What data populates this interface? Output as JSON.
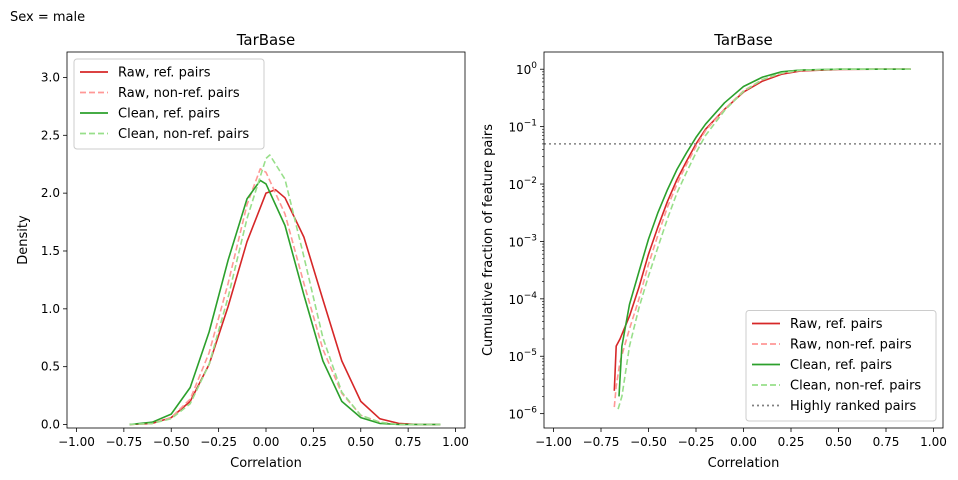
{
  "figure": {
    "suptitle": "Sex = male"
  },
  "chart_data": [
    {
      "type": "line",
      "title": "TarBase",
      "xlabel": "Correlation",
      "ylabel": "Density",
      "xlim": [
        -1.05,
        1.05
      ],
      "ylim": [
        -0.03,
        3.22
      ],
      "xticks": [
        -1.0,
        -0.75,
        -0.5,
        -0.25,
        0.0,
        0.25,
        0.5,
        0.75,
        1.0
      ],
      "xtick_labels": [
        "−1.00",
        "−0.75",
        "−0.50",
        "−0.25",
        "0.00",
        "0.25",
        "0.50",
        "0.75",
        "1.00"
      ],
      "yticks": [
        0.0,
        0.5,
        1.0,
        1.5,
        2.0,
        2.5,
        3.0
      ],
      "ytick_labels": [
        "0.0",
        "0.5",
        "1.0",
        "1.5",
        "2.0",
        "2.5",
        "3.0"
      ],
      "legend_position": "upper-left",
      "series": [
        {
          "name": "Raw, ref. pairs",
          "color": "#d62728",
          "style": "solid",
          "x": [
            -0.72,
            -0.6,
            -0.5,
            -0.4,
            -0.3,
            -0.2,
            -0.1,
            0.0,
            0.05,
            0.1,
            0.2,
            0.3,
            0.4,
            0.5,
            0.6,
            0.7,
            0.8,
            0.92
          ],
          "y": [
            0.0,
            0.01,
            0.06,
            0.2,
            0.52,
            1.02,
            1.58,
            2.0,
            2.03,
            1.96,
            1.62,
            1.08,
            0.55,
            0.2,
            0.05,
            0.01,
            0.0,
            0.0
          ]
        },
        {
          "name": "Raw, non-ref. pairs",
          "color": "#ff9896",
          "style": "dashed",
          "x": [
            -0.72,
            -0.6,
            -0.5,
            -0.4,
            -0.3,
            -0.2,
            -0.1,
            -0.03,
            0.0,
            0.1,
            0.2,
            0.3,
            0.4,
            0.5,
            0.6,
            0.7,
            0.8,
            0.92
          ],
          "y": [
            0.0,
            0.01,
            0.06,
            0.22,
            0.62,
            1.22,
            1.9,
            2.21,
            2.18,
            1.82,
            1.22,
            0.65,
            0.27,
            0.08,
            0.02,
            0.0,
            0.0,
            0.0
          ]
        },
        {
          "name": "Clean, ref. pairs",
          "color": "#2ca02c",
          "style": "solid",
          "x": [
            -0.72,
            -0.6,
            -0.5,
            -0.4,
            -0.3,
            -0.2,
            -0.1,
            -0.03,
            0.0,
            0.1,
            0.2,
            0.3,
            0.4,
            0.5,
            0.6,
            0.7,
            0.8,
            0.92
          ],
          "y": [
            0.0,
            0.02,
            0.09,
            0.32,
            0.8,
            1.42,
            1.95,
            2.11,
            2.08,
            1.72,
            1.12,
            0.55,
            0.2,
            0.06,
            0.01,
            0.0,
            0.0,
            0.0
          ]
        },
        {
          "name": "Clean, non-ref. pairs",
          "color": "#98df8a",
          "style": "dashed",
          "x": [
            -0.72,
            -0.6,
            -0.5,
            -0.4,
            -0.3,
            -0.2,
            -0.1,
            0.0,
            0.02,
            0.1,
            0.2,
            0.3,
            0.4,
            0.5,
            0.6,
            0.7,
            0.8,
            0.92
          ],
          "y": [
            0.0,
            0.01,
            0.05,
            0.18,
            0.52,
            1.1,
            1.78,
            2.3,
            2.33,
            2.12,
            1.45,
            0.75,
            0.28,
            0.08,
            0.02,
            0.0,
            0.0,
            0.0
          ]
        }
      ]
    },
    {
      "type": "line",
      "title": "TarBase",
      "xlabel": "Correlation",
      "ylabel": "Cumulative fraction of feature pairs",
      "yscale": "log",
      "xlim": [
        -1.05,
        1.05
      ],
      "ylim_log10": [
        -6.25,
        0.3
      ],
      "xticks": [
        -1.0,
        -0.75,
        -0.5,
        -0.25,
        0.0,
        0.25,
        0.5,
        0.75,
        1.0
      ],
      "xtick_labels": [
        "−1.00",
        "−0.75",
        "−0.50",
        "−0.25",
        "0.00",
        "0.25",
        "0.50",
        "0.75",
        "1.00"
      ],
      "yticks_log10": [
        -6,
        -5,
        -4,
        -3,
        -2,
        -1,
        0
      ],
      "ytick_bases": [
        "10",
        "10",
        "10",
        "10",
        "10",
        "10",
        "10"
      ],
      "ytick_exponents": [
        "−6",
        "−5",
        "−4",
        "−3",
        "−2",
        "−1",
        "0"
      ],
      "legend_position": "lower-right",
      "series": [
        {
          "name": "Raw, ref. pairs",
          "color": "#d62728",
          "style": "solid",
          "x": [
            -0.68,
            -0.67,
            -0.65,
            -0.6,
            -0.55,
            -0.5,
            -0.45,
            -0.4,
            -0.35,
            -0.3,
            -0.25,
            -0.2,
            -0.1,
            0.0,
            0.1,
            0.2,
            0.3,
            0.5,
            0.7,
            0.88
          ],
          "y": [
            2.5e-06,
            1.5e-05,
            2e-05,
            5e-05,
            0.00016,
            0.0006,
            0.0018,
            0.005,
            0.012,
            0.025,
            0.05,
            0.09,
            0.2,
            0.4,
            0.62,
            0.82,
            0.93,
            0.99,
            1.0,
            1.0
          ]
        },
        {
          "name": "Raw, non-ref. pairs",
          "color": "#ff9896",
          "style": "dashed",
          "x": [
            -0.68,
            -0.67,
            -0.65,
            -0.6,
            -0.55,
            -0.5,
            -0.45,
            -0.4,
            -0.35,
            -0.3,
            -0.25,
            -0.2,
            -0.1,
            0.0,
            0.1,
            0.2,
            0.3,
            0.5,
            0.7,
            0.88
          ],
          "y": [
            1.3e-06,
            3e-06,
            8e-06,
            3e-05,
            0.0001,
            0.0004,
            0.0013,
            0.004,
            0.01,
            0.022,
            0.045,
            0.085,
            0.2,
            0.42,
            0.66,
            0.85,
            0.95,
            1.0,
            1.0,
            1.0
          ]
        },
        {
          "name": "Clean, ref. pairs",
          "color": "#2ca02c",
          "style": "solid",
          "x": [
            -0.655,
            -0.64,
            -0.6,
            -0.55,
            -0.5,
            -0.45,
            -0.4,
            -0.35,
            -0.3,
            -0.25,
            -0.2,
            -0.1,
            0.0,
            0.1,
            0.2,
            0.3,
            0.5,
            0.7,
            0.88
          ],
          "y": [
            2e-06,
            1.5e-05,
            8e-05,
            0.0003,
            0.0011,
            0.0032,
            0.008,
            0.018,
            0.035,
            0.065,
            0.11,
            0.26,
            0.5,
            0.73,
            0.9,
            0.97,
            1.0,
            1.0,
            1.0
          ]
        },
        {
          "name": "Clean, non-ref. pairs",
          "color": "#98df8a",
          "style": "dashed",
          "x": [
            -0.66,
            -0.64,
            -0.6,
            -0.55,
            -0.5,
            -0.45,
            -0.4,
            -0.35,
            -0.3,
            -0.25,
            -0.2,
            -0.1,
            0.0,
            0.1,
            0.2,
            0.3,
            0.5,
            0.7,
            0.88
          ],
          "y": [
            1.2e-06,
            2e-06,
            1.5e-05,
            7e-05,
            0.00025,
            0.0008,
            0.0025,
            0.007,
            0.016,
            0.035,
            0.07,
            0.19,
            0.41,
            0.66,
            0.86,
            0.96,
            1.0,
            1.0,
            1.0
          ]
        },
        {
          "name": "Highly ranked pairs",
          "color": "#808080",
          "style": "dotted",
          "hline_y": 0.05
        }
      ]
    }
  ]
}
